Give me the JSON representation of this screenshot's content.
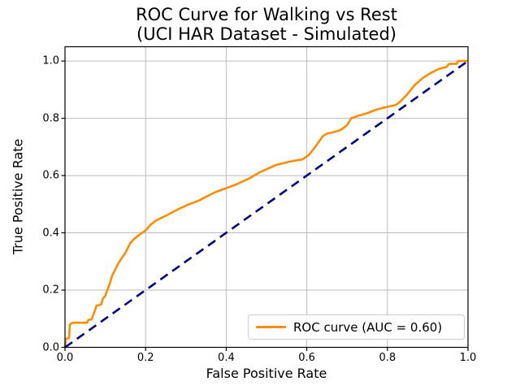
{
  "figure": {
    "title_line1": "ROC Curve for Walking vs Rest",
    "title_line2": "(UCI HAR Dataset - Simulated)",
    "xlabel": "False Positive Rate",
    "ylabel": "True Positive Rate"
  },
  "legend": {
    "roc_label": "ROC curve (AUC = 0.60)"
  },
  "colors": {
    "roc_curve": "#FF8C00",
    "diagonal": "#000080",
    "grid": "#BBBBBB",
    "spine": "#000000",
    "text": "#000000",
    "legend_border": "#CCCCCC"
  },
  "chart_data": {
    "type": "line",
    "title": "ROC Curve for Walking vs Rest (UCI HAR Dataset - Simulated)",
    "xlabel": "False Positive Rate",
    "ylabel": "True Positive Rate",
    "xlim": [
      0.0,
      1.0
    ],
    "ylim": [
      0.0,
      1.05
    ],
    "x_ticks": [
      0.0,
      0.2,
      0.4,
      0.6,
      0.8,
      1.0
    ],
    "x_tick_labels": [
      "0.0",
      "0.2",
      "0.4",
      "0.6",
      "0.8",
      "1.0"
    ],
    "y_ticks": [
      0.0,
      0.2,
      0.4,
      0.6,
      0.8,
      1.0
    ],
    "y_tick_labels": [
      "0.0",
      "0.2",
      "0.4",
      "0.6",
      "0.8",
      "1.0"
    ],
    "grid": true,
    "legend_position": "lower right",
    "series": [
      {
        "name": "ROC curve (AUC = 0.60)",
        "auc": 0.6,
        "color": "#FF8C00",
        "style": "solid",
        "points": [
          [
            0.0,
            0.0
          ],
          [
            0.002,
            0.03
          ],
          [
            0.01,
            0.032
          ],
          [
            0.012,
            0.08
          ],
          [
            0.02,
            0.086
          ],
          [
            0.055,
            0.086
          ],
          [
            0.058,
            0.096
          ],
          [
            0.066,
            0.098
          ],
          [
            0.07,
            0.112
          ],
          [
            0.074,
            0.128
          ],
          [
            0.078,
            0.145
          ],
          [
            0.09,
            0.15
          ],
          [
            0.094,
            0.17
          ],
          [
            0.1,
            0.18
          ],
          [
            0.105,
            0.2
          ],
          [
            0.111,
            0.222
          ],
          [
            0.117,
            0.25
          ],
          [
            0.124,
            0.27
          ],
          [
            0.131,
            0.29
          ],
          [
            0.14,
            0.31
          ],
          [
            0.15,
            0.33
          ],
          [
            0.161,
            0.362
          ],
          [
            0.171,
            0.378
          ],
          [
            0.185,
            0.394
          ],
          [
            0.2,
            0.408
          ],
          [
            0.212,
            0.428
          ],
          [
            0.225,
            0.442
          ],
          [
            0.252,
            0.461
          ],
          [
            0.279,
            0.481
          ],
          [
            0.306,
            0.499
          ],
          [
            0.333,
            0.513
          ],
          [
            0.346,
            0.523
          ],
          [
            0.373,
            0.542
          ],
          [
            0.4,
            0.556
          ],
          [
            0.427,
            0.57
          ],
          [
            0.46,
            0.592
          ],
          [
            0.484,
            0.612
          ],
          [
            0.524,
            0.637
          ],
          [
            0.565,
            0.651
          ],
          [
            0.589,
            0.656
          ],
          [
            0.605,
            0.672
          ],
          [
            0.621,
            0.7
          ],
          [
            0.639,
            0.736
          ],
          [
            0.649,
            0.746
          ],
          [
            0.665,
            0.751
          ],
          [
            0.685,
            0.76
          ],
          [
            0.7,
            0.776
          ],
          [
            0.706,
            0.79
          ],
          [
            0.71,
            0.8
          ],
          [
            0.73,
            0.81
          ],
          [
            0.746,
            0.816
          ],
          [
            0.772,
            0.83
          ],
          [
            0.8,
            0.84
          ],
          [
            0.82,
            0.846
          ],
          [
            0.83,
            0.856
          ],
          [
            0.847,
            0.88
          ],
          [
            0.867,
            0.915
          ],
          [
            0.887,
            0.94
          ],
          [
            0.907,
            0.958
          ],
          [
            0.927,
            0.972
          ],
          [
            0.947,
            0.98
          ],
          [
            0.953,
            0.99
          ],
          [
            0.972,
            0.99
          ],
          [
            0.975,
            1.0
          ],
          [
            1.0,
            1.0
          ]
        ]
      },
      {
        "name": "chance-diagonal",
        "color": "#000080",
        "style": "dashed",
        "points": [
          [
            0.0,
            0.0
          ],
          [
            1.0,
            1.0
          ]
        ]
      }
    ]
  }
}
